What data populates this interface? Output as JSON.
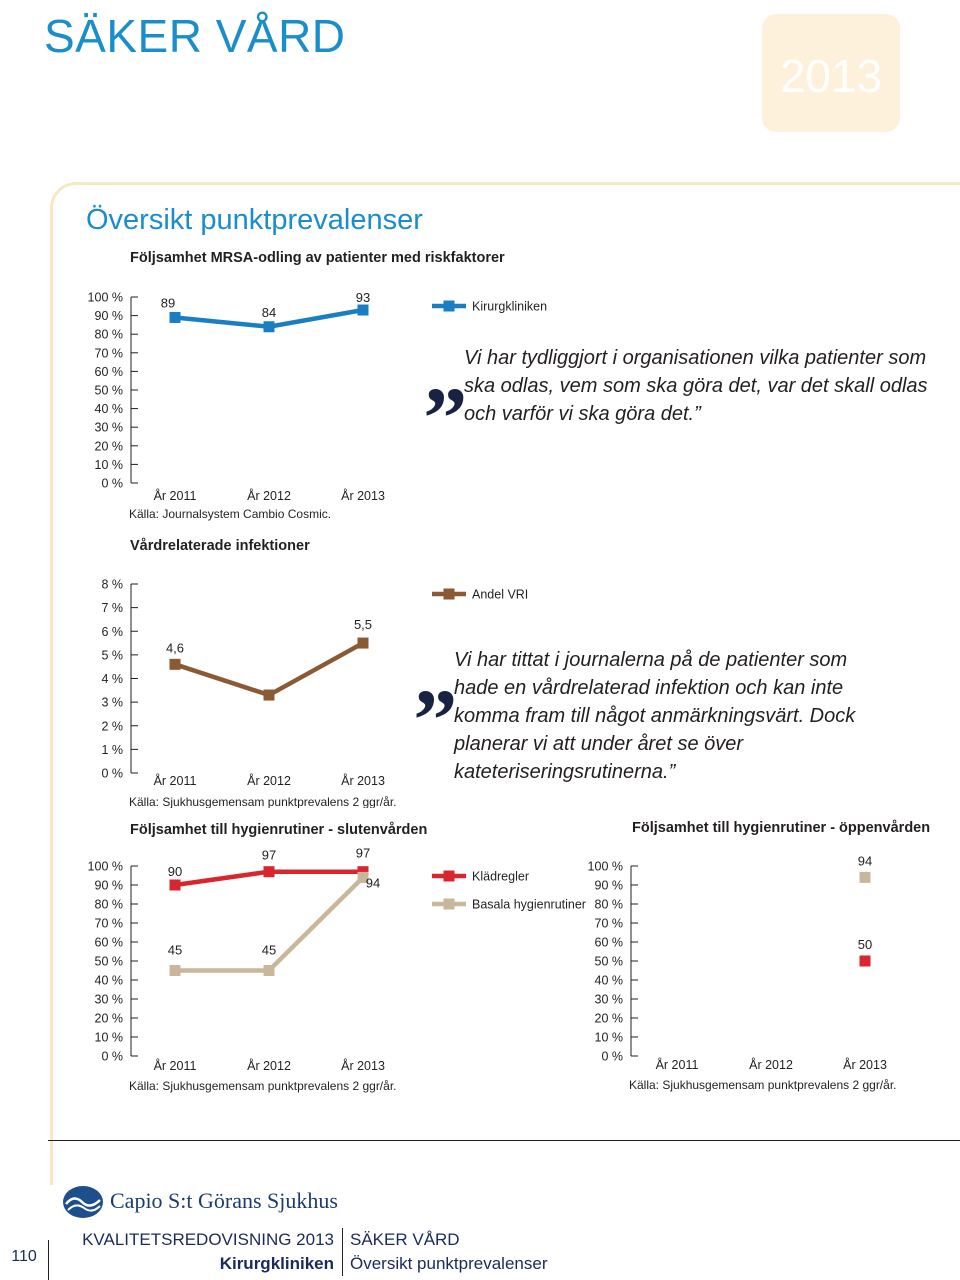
{
  "header": {
    "title": "SÄKER VÅRD",
    "year": "2013"
  },
  "section": {
    "heading": "Översikt punktprevalenser"
  },
  "chart_data": [
    {
      "type": "line",
      "title": "Följsamhet MRSA-odling av patienter med riskfaktorer",
      "categories": [
        "År 2011",
        "År 2012",
        "År 2013"
      ],
      "y_ticks": [
        "100 %",
        "90 %",
        "80 %",
        "70 %",
        "60 %",
        "50 %",
        "40 %",
        "30 %",
        "20 %",
        "10 %",
        "0 %"
      ],
      "ylim": [
        0,
        100
      ],
      "series": [
        {
          "name": "Kirurgkliniken",
          "values": [
            89,
            84,
            93
          ],
          "labels": [
            "89",
            "84",
            "93"
          ],
          "color": "#1a7ec3"
        }
      ],
      "legend": "right",
      "source": "Källa: Journalsystem Cambio Cosmic."
    },
    {
      "type": "line",
      "title": "Vårdrelaterade infektioner",
      "categories": [
        "År 2011",
        "År 2012",
        "År 2013"
      ],
      "y_ticks": [
        "8 %",
        "7 %",
        "6 %",
        "5 %",
        "4 %",
        "3 %",
        "2 %",
        "1 %",
        "0 %"
      ],
      "ylim": [
        0,
        8
      ],
      "series": [
        {
          "name": "Andel VRI",
          "values": [
            4.6,
            3.3,
            5.5
          ],
          "labels": [
            "4,6",
            "",
            "5,5"
          ],
          "color": "#8b5a34"
        }
      ],
      "legend": "right",
      "source": "Källa: Sjukhusgemensam punktprevalens 2 ggr/år."
    },
    {
      "type": "line",
      "title": "Följsamhet till hygienrutiner - slutenvården",
      "categories": [
        "År 2011",
        "År 2012",
        "År 2013"
      ],
      "y_ticks": [
        "100 %",
        "90 %",
        "80 %",
        "70 %",
        "60 %",
        "50 %",
        "40 %",
        "30 %",
        "20 %",
        "10 %",
        "0 %"
      ],
      "ylim": [
        0,
        100
      ],
      "series": [
        {
          "name": "Klädregler",
          "values": [
            90,
            97,
            97
          ],
          "labels": [
            "90",
            "97",
            "97"
          ],
          "color": "#d9252e"
        },
        {
          "name": "Basala hygienrutiner",
          "values": [
            45,
            45,
            94
          ],
          "labels": [
            "45",
            "45",
            "94"
          ],
          "color": "#c9b79c"
        }
      ],
      "legend": "right",
      "source": "Källa: Sjukhusgemensam punktprevalens 2 ggr/år."
    },
    {
      "type": "scatter",
      "title": "Följsamhet till hygienrutiner - öppenvården",
      "categories": [
        "År 2011",
        "År 2012",
        "År 2013"
      ],
      "y_ticks": [
        "100 %",
        "90 %",
        "80 %",
        "70 %",
        "60 %",
        "50 %",
        "40 %",
        "30 %",
        "20 %",
        "10 %",
        "0 %"
      ],
      "ylim": [
        0,
        100
      ],
      "series": [
        {
          "name": "Klädregler",
          "values": [
            null,
            null,
            50
          ],
          "labels": [
            "",
            "",
            "50"
          ],
          "color": "#d9252e"
        },
        {
          "name": "Basala hygienrutiner",
          "values": [
            null,
            null,
            94
          ],
          "labels": [
            "",
            "",
            "94"
          ],
          "color": "#c9b79c"
        }
      ],
      "source": "Källa: Sjukhusgemensam punktprevalens 2 ggr/år."
    }
  ],
  "quotes": [
    "Vi har tydliggjort i organisationen vilka patienter som ska odlas, vem som ska göra det, var det skall odlas och varför vi ska göra det.",
    "Vi har tittat i journalerna på de patienter som hade en vårdrelaterad infektion och kan inte komma fram till något anmärkningsvärt. Dock planerar vi att under året se över kateteriseringsrutinerna."
  ],
  "quote_glyph": "„",
  "quote_close": "”",
  "footer": {
    "logo": "Capio S:t Görans Sjukhus",
    "logo_icon": "capio-wave-logo-icon",
    "report": "KVALITETSREDOVISNING 2013",
    "clinic": "Kirurgkliniken",
    "section1": "SÄKER VÅRD",
    "section2": "Översikt punktprevalenser",
    "page": "110"
  }
}
